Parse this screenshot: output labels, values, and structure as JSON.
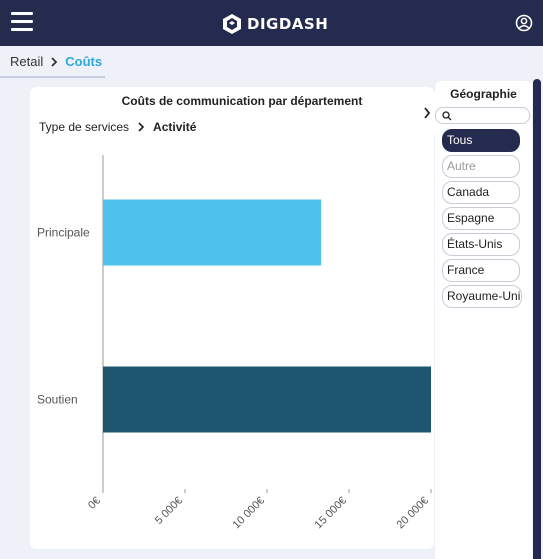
{
  "header": {
    "logo_text": "DIGDASH",
    "menu_icon": "hamburger-menu-icon",
    "user_icon": "user-account-icon",
    "color": "#252b4e"
  },
  "breadcrumb": {
    "root": "Retail",
    "current": "Coûts",
    "accent_color": "#2fa8db"
  },
  "chart_panel": {
    "drill_path": {
      "root": "Type de services",
      "current": "Activité"
    }
  },
  "chart_data": {
    "type": "bar",
    "orientation": "horizontal",
    "title": "Coûts de communication par département",
    "categories": [
      "Principale",
      "Soutien"
    ],
    "values": [
      13300,
      20000
    ],
    "colors": [
      "#4ec1ec",
      "#1e5670"
    ],
    "xlim": [
      0,
      20000
    ],
    "x_ticks": [
      0,
      5000,
      10000,
      15000,
      20000
    ],
    "x_tick_labels": [
      "0€",
      "5 000€",
      "10 000€",
      "15 000€",
      "20 000€"
    ],
    "grid": false,
    "xlabel": "",
    "ylabel": ""
  },
  "filter": {
    "title": "Géographie",
    "search_placeholder": "",
    "items": [
      {
        "label": "Tous",
        "state": "selected"
      },
      {
        "label": "Autre",
        "state": "disabled"
      },
      {
        "label": "Canada",
        "state": "normal"
      },
      {
        "label": "Espagne",
        "state": "normal"
      },
      {
        "label": "États-Unis",
        "state": "normal"
      },
      {
        "label": "France",
        "state": "normal"
      },
      {
        "label": "Royaume-Uni",
        "state": "normal"
      }
    ]
  }
}
